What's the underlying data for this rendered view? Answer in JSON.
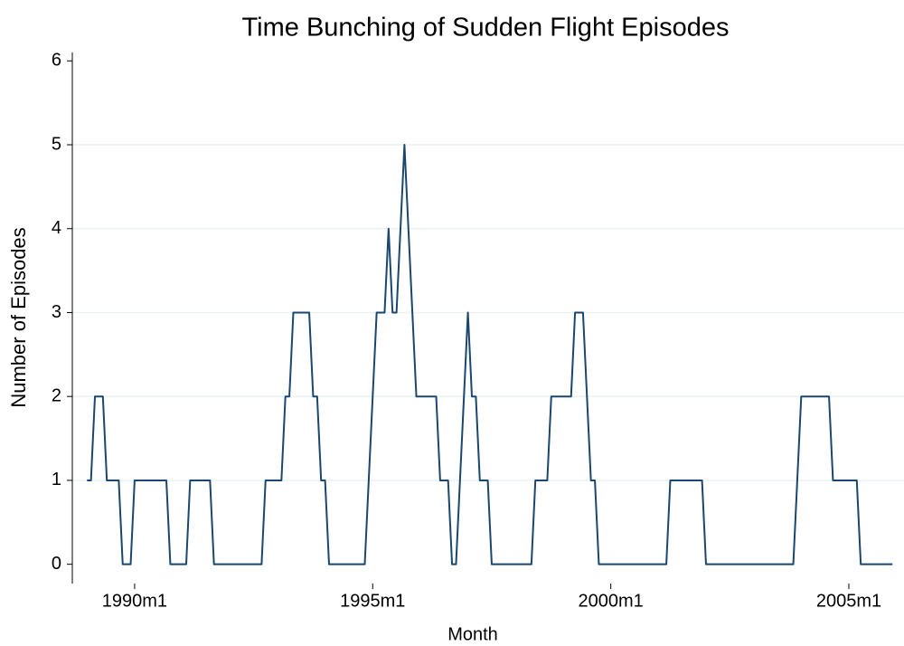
{
  "chart_data": {
    "type": "line",
    "title": "Time Bunching of Sudden Flight Episodes",
    "xlabel": "Month",
    "ylabel": "Number of Episodes",
    "xlim": [
      344.3,
      553.9
    ],
    "ylim": [
      -0.23,
      6.1
    ],
    "xticks": [
      {
        "value": 360,
        "label": "1990m1"
      },
      {
        "value": 420,
        "label": "1995m1"
      },
      {
        "value": 480,
        "label": "2000m1"
      },
      {
        "value": 540,
        "label": "2005m1"
      }
    ],
    "yticks": [
      0,
      1,
      2,
      3,
      4,
      5,
      6
    ],
    "grid": true,
    "x": [
      348,
      349,
      350,
      351,
      352,
      353,
      354,
      355,
      356,
      357,
      358,
      359,
      360,
      361,
      362,
      363,
      364,
      365,
      366,
      367,
      368,
      369,
      370,
      371,
      372,
      373,
      374,
      375,
      376,
      377,
      378,
      379,
      380,
      381,
      382,
      383,
      384,
      385,
      386,
      387,
      388,
      389,
      390,
      391,
      392,
      393,
      394,
      395,
      396,
      397,
      398,
      399,
      400,
      401,
      402,
      403,
      404,
      405,
      406,
      407,
      408,
      409,
      410,
      411,
      412,
      413,
      414,
      415,
      416,
      417,
      418,
      419,
      420,
      421,
      422,
      423,
      424,
      425,
      426,
      427,
      428,
      429,
      430,
      431,
      432,
      433,
      434,
      435,
      436,
      437,
      438,
      439,
      440,
      441,
      442,
      443,
      444,
      445,
      446,
      447,
      448,
      449,
      450,
      451,
      452,
      453,
      454,
      455,
      456,
      457,
      458,
      459,
      460,
      461,
      462,
      463,
      464,
      465,
      466,
      467,
      468,
      469,
      470,
      471,
      472,
      473,
      474,
      475,
      476,
      477,
      478,
      479,
      480,
      481,
      482,
      483,
      484,
      485,
      486,
      487,
      488,
      489,
      490,
      491,
      492,
      493,
      494,
      495,
      496,
      497,
      498,
      499,
      500,
      501,
      502,
      503,
      504,
      505,
      506,
      507,
      508,
      509,
      510,
      511,
      512,
      513,
      514,
      515,
      516,
      517,
      518,
      519,
      520,
      521,
      522,
      523,
      524,
      525,
      526,
      527,
      528,
      529,
      530,
      531,
      532,
      533,
      534,
      535,
      536,
      537,
      538,
      539,
      540,
      541,
      542,
      543,
      544,
      545,
      546,
      547,
      548,
      549,
      550,
      551
    ],
    "series": [
      {
        "name": "Episodes",
        "color": "#1a476f",
        "values": [
          1,
          1,
          2,
          2,
          2,
          1,
          1,
          1,
          1,
          0,
          0,
          0,
          1,
          1,
          1,
          1,
          1,
          1,
          1,
          1,
          1,
          0,
          0,
          0,
          0,
          0,
          1,
          1,
          1,
          1,
          1,
          1,
          0,
          0,
          0,
          0,
          0,
          0,
          0,
          0,
          0,
          0,
          0,
          0,
          0,
          1,
          1,
          1,
          1,
          1,
          2,
          2,
          3,
          3,
          3,
          3,
          3,
          2,
          2,
          1,
          1,
          0,
          0,
          0,
          0,
          0,
          0,
          0,
          0,
          0,
          0,
          1,
          2,
          3,
          3,
          3,
          4,
          3,
          3,
          4,
          5,
          4,
          3,
          2,
          2,
          2,
          2,
          2,
          2,
          1,
          1,
          1,
          0,
          0,
          1,
          2,
          3,
          2,
          2,
          1,
          1,
          1,
          0,
          0,
          0,
          0,
          0,
          0,
          0,
          0,
          0,
          0,
          0,
          1,
          1,
          1,
          1,
          2,
          2,
          2,
          2,
          2,
          2,
          3,
          3,
          3,
          2,
          1,
          1,
          0,
          0,
          0,
          0,
          0,
          0,
          0,
          0,
          0,
          0,
          0,
          0,
          0,
          0,
          0,
          0,
          0,
          0,
          1,
          1,
          1,
          1,
          1,
          1,
          1,
          1,
          1,
          0,
          0,
          0,
          0,
          0,
          0,
          0,
          0,
          0,
          0,
          0,
          0,
          0,
          0,
          0,
          0,
          0,
          0,
          0,
          0,
          0,
          0,
          0,
          1,
          2,
          2,
          2,
          2,
          2,
          2,
          2,
          2,
          1,
          1,
          1,
          1,
          1,
          1,
          1,
          0,
          0,
          0,
          0,
          0,
          0,
          0,
          0,
          0
        ]
      }
    ]
  }
}
